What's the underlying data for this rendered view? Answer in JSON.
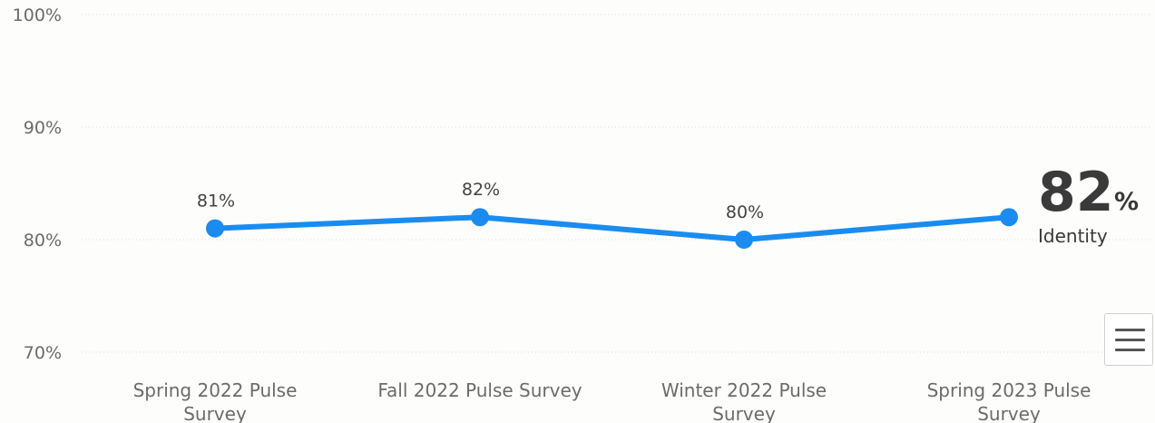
{
  "chart_data": {
    "type": "line",
    "title": "",
    "xlabel": "",
    "ylabel": "",
    "categories": [
      [
        "Spring 2022 Pulse",
        "Survey"
      ],
      [
        "Fall 2022 Pulse Survey"
      ],
      [
        "Winter 2022 Pulse",
        "Survey"
      ],
      [
        "Spring 2023 Pulse",
        "Survey"
      ]
    ],
    "series": [
      {
        "values": [
          81,
          82,
          80,
          82
        ],
        "data_labels": [
          "81%",
          "82%",
          "80%",
          null
        ],
        "color": "#1a8cf0"
      }
    ],
    "ylim": [
      70,
      100
    ],
    "yticks": [
      {
        "value": 70,
        "label": "70%"
      },
      {
        "value": 80,
        "label": "80%"
      },
      {
        "value": 90,
        "label": "90%"
      },
      {
        "value": 100,
        "label": "100%"
      }
    ],
    "grid": true,
    "highlight": {
      "value": "82",
      "unit": "%",
      "caption": "Identity"
    }
  },
  "colors": {
    "line": "#1a8cf0",
    "grid": "#dadada",
    "background": "#fdfdfb"
  },
  "menu_icon": "hamburger-menu-icon"
}
